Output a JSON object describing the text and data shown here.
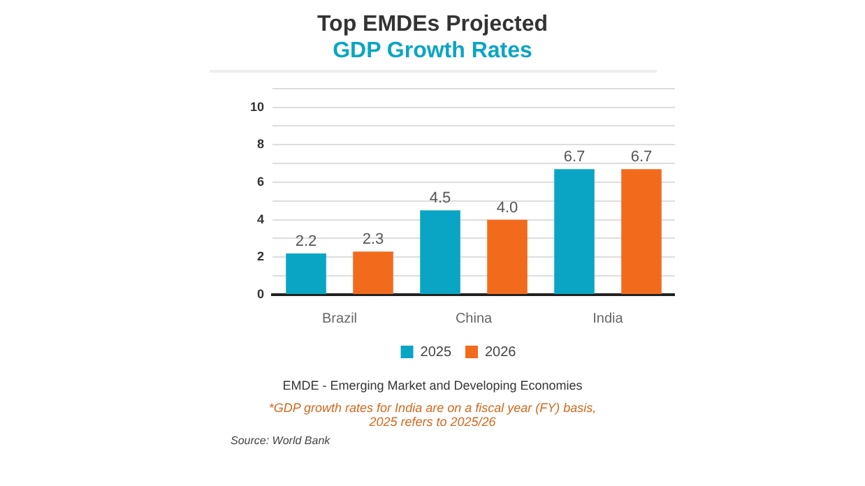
{
  "chart_data": {
    "type": "bar",
    "title": "Top EMDEs Projected",
    "subtitle": "GDP Growth Rates",
    "categories": [
      "Brazil",
      "China",
      "India"
    ],
    "series": [
      {
        "name": "2025",
        "color": "#0aa5c4",
        "values": [
          2.2,
          4.5,
          6.7
        ],
        "value_labels": [
          "2.2",
          "4.5",
          "6.7"
        ]
      },
      {
        "name": "2026",
        "color": "#f26b1d",
        "values": [
          2.3,
          4.0,
          6.7
        ],
        "value_labels": [
          "2.3",
          "4.0",
          "6.7"
        ]
      }
    ],
    "ylim": [
      0,
      11
    ],
    "yticks": [
      0,
      {
        "value": 1,
        "label": null
      },
      2,
      {
        "value": 3,
        "label": null
      },
      4,
      {
        "value": 5,
        "label": null
      },
      6,
      {
        "value": 7,
        "label": null
      },
      8,
      {
        "value": 9,
        "label": null
      },
      10,
      {
        "value": 11,
        "label": null
      }
    ],
    "grid": "y",
    "legend": "bottom",
    "annotations": [
      "EMDE - Emerging Market and Developing Economies",
      "*GDP growth rates for India are on a fiscal year (FY) basis, 2025 refers to 2025/26",
      "Source: World Bank"
    ]
  }
}
